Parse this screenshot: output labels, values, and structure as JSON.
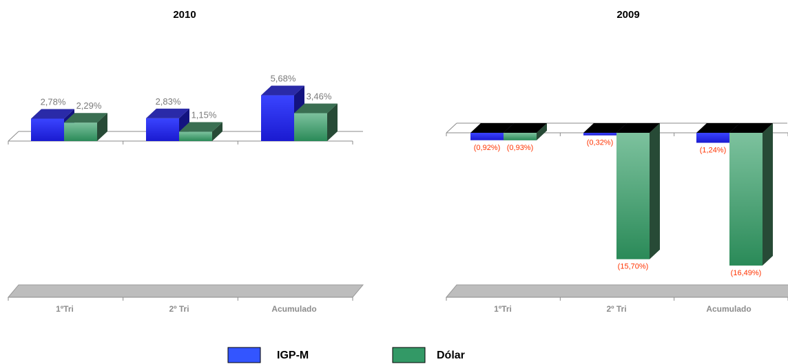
{
  "colors": {
    "igpm_front_top": "#3a44ff",
    "igpm_front_bottom": "#1a1ad0",
    "igpm_side": "#131380",
    "igpm_top": "#2a2aa8",
    "dolar_front_top": "#7dc29e",
    "dolar_front_bottom": "#2a8a58",
    "dolar_side": "#274a36",
    "dolar_top": "#3a6f52",
    "neg_top_face": "#000000",
    "positive_label": "#7a7a7a",
    "negative_label": "#ff3300",
    "legend_igpm": "#3355ff",
    "legend_dolar": "#339966"
  },
  "legend": [
    {
      "name": "IGP-M",
      "color": "#3355ff"
    },
    {
      "name": "Dólar",
      "color": "#339966"
    }
  ],
  "chart_data": [
    {
      "type": "bar",
      "title": "2010",
      "categories": [
        "1ºTri",
        "2º Tri",
        "Acumulado"
      ],
      "series": [
        {
          "name": "IGP-M",
          "values": [
            2.78,
            2.83,
            5.68
          ],
          "labels": [
            "2,78%",
            "2,83%",
            "5,68%"
          ]
        },
        {
          "name": "Dólar",
          "values": [
            2.29,
            1.15,
            3.46
          ],
          "labels": [
            "2,29%",
            "1,15%",
            "3,46%"
          ]
        }
      ],
      "ylim": [
        -16.5,
        6
      ],
      "grid": false,
      "legend_position": "bottom"
    },
    {
      "type": "bar",
      "title": "2009",
      "categories": [
        "1ºTri",
        "2º Tri",
        "Acumulado"
      ],
      "series": [
        {
          "name": "IGP-M",
          "values": [
            -0.92,
            -0.32,
            -1.24
          ],
          "labels": [
            "(0,92%)",
            "(0,32%)",
            "(1,24%)"
          ]
        },
        {
          "name": "Dólar",
          "values": [
            -0.93,
            -15.7,
            -16.49
          ],
          "labels": [
            "(0,93%)",
            "(15,70%)",
            "(16,49%)"
          ]
        }
      ],
      "ylim": [
        -16.5,
        6
      ],
      "grid": false,
      "legend_position": "bottom"
    }
  ]
}
